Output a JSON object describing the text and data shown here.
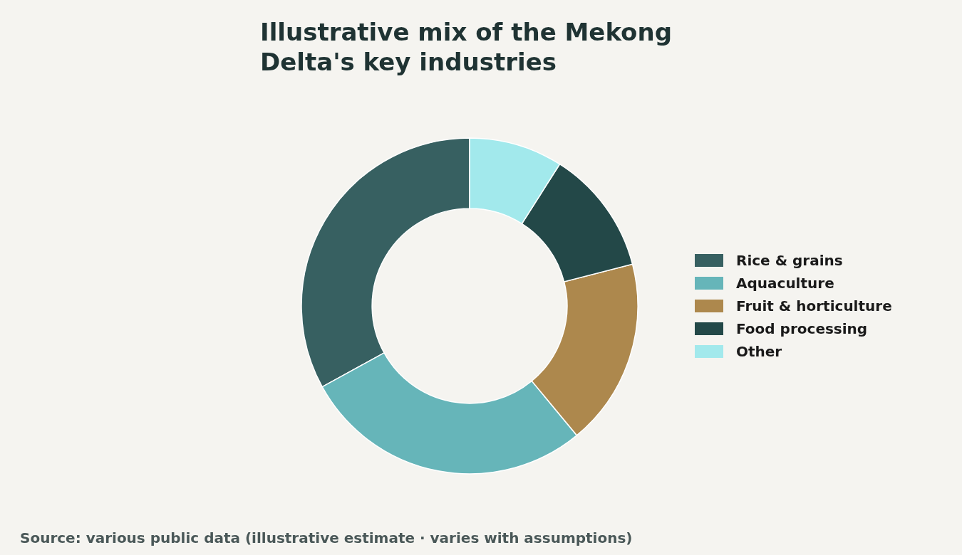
{
  "chart_data": {
    "type": "donut",
    "title": "Illustrative mix of the Mekong Delta's key industries",
    "categories": [
      "Rice & grains",
      "Aquaculture",
      "Fruit & horticulture",
      "Food processing",
      "Other"
    ],
    "values": [
      33,
      28,
      18,
      12,
      9
    ],
    "colors": [
      "#376061",
      "#66b5b9",
      "#ad884d",
      "#234848",
      "#a2e9ec"
    ],
    "legend": "right",
    "annotations": [
      "Source: various public data (illustrative estimate · varies with assumptions)"
    ]
  }
}
